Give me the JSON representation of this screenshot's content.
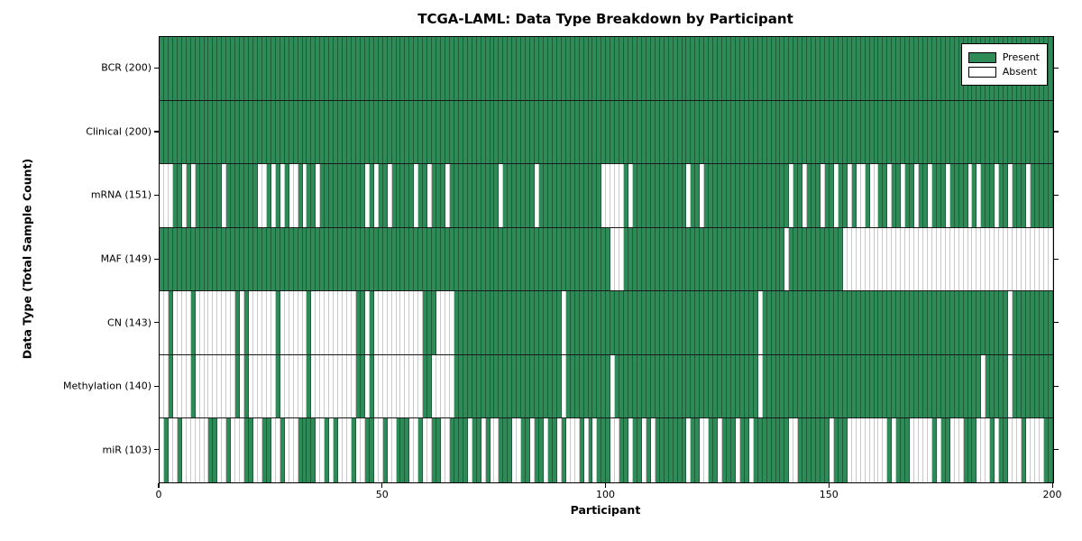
{
  "title": "TCGA-LAML: Data Type Breakdown by Participant",
  "xlabel": "Participant",
  "ylabel": "Data Type (Total Sample Count)",
  "legend": {
    "present_label": "Present",
    "absent_label": "Absent"
  },
  "x_ticks": [
    "0",
    "50",
    "100",
    "150",
    "200"
  ],
  "colors": {
    "present": "#2e8b57",
    "present_edge": "#1f5c3a",
    "absent": "#ffffff",
    "absent_edge": "#c9c9c9",
    "row_separator": "#1a1a1a"
  },
  "chart_data": {
    "type": "heatmap",
    "title": "TCGA-LAML: Data Type Breakdown by Participant",
    "xlabel": "Participant",
    "ylabel": "Data Type (Total Sample Count)",
    "x_range": [
      0,
      200
    ],
    "x_tick_values": [
      0,
      50,
      100,
      150,
      200
    ],
    "participants": 200,
    "grid": false,
    "legend_position": "upper right",
    "legend": [
      {
        "label": "Present",
        "color": "#2e8b57"
      },
      {
        "label": "Absent",
        "color": "#ffffff"
      }
    ],
    "rows": [
      {
        "name": "BCR",
        "label": "BCR (200)",
        "present_count": 200,
        "absent_ranges": []
      },
      {
        "name": "Clinical",
        "label": "Clinical (200)",
        "present_count": 200,
        "absent_ranges": []
      },
      {
        "name": "mRNA",
        "label": "mRNA (151)",
        "present_count": 151,
        "absent_ranges": [
          [
            0,
            2
          ],
          [
            5,
            5
          ],
          [
            7,
            7
          ],
          [
            14,
            14
          ],
          [
            22,
            23
          ],
          [
            25,
            25
          ],
          [
            27,
            27
          ],
          [
            29,
            30
          ],
          [
            32,
            32
          ],
          [
            35,
            35
          ],
          [
            46,
            46
          ],
          [
            48,
            48
          ],
          [
            51,
            51
          ],
          [
            57,
            57
          ],
          [
            60,
            60
          ],
          [
            64,
            64
          ],
          [
            76,
            76
          ],
          [
            84,
            84
          ],
          [
            99,
            103
          ],
          [
            105,
            105
          ],
          [
            118,
            118
          ],
          [
            121,
            121
          ],
          [
            141,
            141
          ],
          [
            144,
            144
          ],
          [
            148,
            148
          ],
          [
            151,
            151
          ],
          [
            154,
            154
          ],
          [
            156,
            157
          ],
          [
            159,
            160
          ],
          [
            163,
            163
          ],
          [
            166,
            166
          ],
          [
            169,
            169
          ],
          [
            172,
            172
          ],
          [
            176,
            176
          ],
          [
            181,
            181
          ],
          [
            183,
            183
          ],
          [
            187,
            187
          ],
          [
            190,
            190
          ],
          [
            194,
            194
          ]
        ]
      },
      {
        "name": "MAF",
        "label": "MAF (149)",
        "present_count": 149,
        "absent_ranges": [
          [
            101,
            103
          ],
          [
            140,
            140
          ],
          [
            153,
            199
          ]
        ]
      },
      {
        "name": "CN",
        "label": "CN (143)",
        "present_count": 143,
        "absent_ranges": [
          [
            0,
            1
          ],
          [
            3,
            6
          ],
          [
            8,
            16
          ],
          [
            18,
            18
          ],
          [
            20,
            25
          ],
          [
            27,
            32
          ],
          [
            34,
            43
          ],
          [
            46,
            46
          ],
          [
            48,
            58
          ],
          [
            62,
            65
          ],
          [
            90,
            90
          ],
          [
            134,
            134
          ],
          [
            190,
            190
          ]
        ]
      },
      {
        "name": "Methylation",
        "label": "Methylation (140)",
        "present_count": 140,
        "absent_ranges": [
          [
            0,
            1
          ],
          [
            3,
            6
          ],
          [
            8,
            16
          ],
          [
            18,
            18
          ],
          [
            20,
            25
          ],
          [
            27,
            32
          ],
          [
            34,
            43
          ],
          [
            46,
            46
          ],
          [
            48,
            58
          ],
          [
            61,
            65
          ],
          [
            90,
            90
          ],
          [
            101,
            101
          ],
          [
            134,
            134
          ],
          [
            184,
            184
          ],
          [
            190,
            190
          ]
        ]
      },
      {
        "name": "miR",
        "label": "miR (103)",
        "present_count": 103,
        "absent_ranges": [
          [
            0,
            0
          ],
          [
            2,
            3
          ],
          [
            5,
            10
          ],
          [
            13,
            14
          ],
          [
            16,
            18
          ],
          [
            21,
            22
          ],
          [
            25,
            26
          ],
          [
            28,
            30
          ],
          [
            35,
            36
          ],
          [
            38,
            38
          ],
          [
            40,
            42
          ],
          [
            44,
            45
          ],
          [
            48,
            49
          ],
          [
            51,
            52
          ],
          [
            56,
            57
          ],
          [
            59,
            60
          ],
          [
            63,
            64
          ],
          [
            69,
            69
          ],
          [
            72,
            72
          ],
          [
            74,
            75
          ],
          [
            79,
            80
          ],
          [
            83,
            83
          ],
          [
            86,
            86
          ],
          [
            89,
            89
          ],
          [
            91,
            93
          ],
          [
            95,
            95
          ],
          [
            97,
            97
          ],
          [
            101,
            102
          ],
          [
            105,
            105
          ],
          [
            108,
            108
          ],
          [
            110,
            110
          ],
          [
            118,
            118
          ],
          [
            121,
            122
          ],
          [
            125,
            125
          ],
          [
            129,
            129
          ],
          [
            132,
            132
          ],
          [
            141,
            142
          ],
          [
            150,
            150
          ],
          [
            154,
            162
          ],
          [
            164,
            164
          ],
          [
            168,
            172
          ],
          [
            174,
            174
          ],
          [
            177,
            179
          ],
          [
            183,
            185
          ],
          [
            187,
            187
          ],
          [
            190,
            192
          ],
          [
            194,
            197
          ]
        ]
      }
    ]
  }
}
